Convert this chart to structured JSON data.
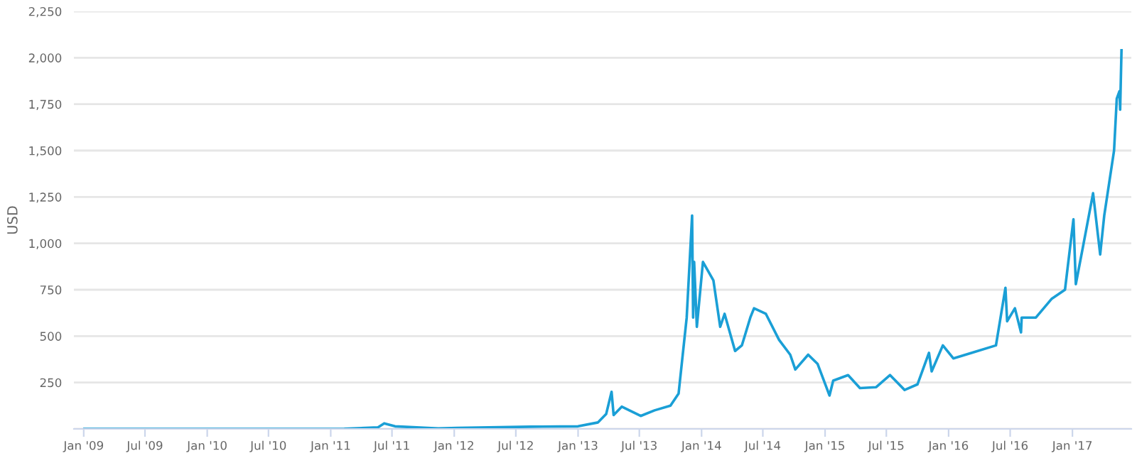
{
  "chart_data": {
    "type": "line",
    "ylabel": "USD",
    "xlim": [
      "2008-12-03",
      "2017-06-24"
    ],
    "ylim": [
      0,
      2250
    ],
    "yticks": [
      {
        "value": 0,
        "label": null
      },
      {
        "value": 250,
        "label": "250"
      },
      {
        "value": 500,
        "label": "500"
      },
      {
        "value": 750,
        "label": "750"
      },
      {
        "value": 1000,
        "label": "1,000"
      },
      {
        "value": 1250,
        "label": "1,250"
      },
      {
        "value": 1500,
        "label": "1,500"
      },
      {
        "value": 1750,
        "label": "1,750"
      },
      {
        "value": 2000,
        "label": "2,000"
      },
      {
        "value": 2250,
        "label": "2,250"
      }
    ],
    "xticks": [
      {
        "value": "2009-01-01",
        "label": "Jan '09"
      },
      {
        "value": "2009-07-01",
        "label": "Jul '09"
      },
      {
        "value": "2010-01-01",
        "label": "Jan '10"
      },
      {
        "value": "2010-07-01",
        "label": "Jul '10"
      },
      {
        "value": "2011-01-01",
        "label": "Jan '11"
      },
      {
        "value": "2011-07-01",
        "label": "Jul '11"
      },
      {
        "value": "2012-01-01",
        "label": "Jan '12"
      },
      {
        "value": "2012-07-01",
        "label": "Jul '12"
      },
      {
        "value": "2013-01-01",
        "label": "Jan '13"
      },
      {
        "value": "2013-07-01",
        "label": "Jul '13"
      },
      {
        "value": "2014-01-01",
        "label": "Jan '14"
      },
      {
        "value": "2014-07-01",
        "label": "Jul '14"
      },
      {
        "value": "2015-01-01",
        "label": "Jan '15"
      },
      {
        "value": "2015-07-01",
        "label": "Jul '15"
      },
      {
        "value": "2016-01-01",
        "label": "Jan '16"
      },
      {
        "value": "2016-07-01",
        "label": "Jul '16"
      },
      {
        "value": "2017-01-01",
        "label": "Jan '17"
      }
    ],
    "grid": "y",
    "legend": false,
    "line_style": "solid",
    "marker": "none",
    "x": [
      "2009-01-03",
      "2010-07-17",
      "2011-02-10",
      "2011-05-20",
      "2011-06-08",
      "2011-07-10",
      "2011-11-15",
      "2012-01-10",
      "2012-08-15",
      "2013-01-01",
      "2013-03-01",
      "2013-03-25",
      "2013-04-10",
      "2013-04-16",
      "2013-05-10",
      "2013-07-05",
      "2013-08-15",
      "2013-10-01",
      "2013-10-25",
      "2013-11-18",
      "2013-12-04",
      "2013-12-07",
      "2013-12-10",
      "2013-12-18",
      "2014-01-05",
      "2014-02-05",
      "2014-02-25",
      "2014-03-10",
      "2014-04-10",
      "2014-04-30",
      "2014-05-25",
      "2014-06-05",
      "2014-07-10",
      "2014-08-18",
      "2014-09-20",
      "2014-10-05",
      "2014-11-12",
      "2014-12-10",
      "2015-01-14",
      "2015-01-25",
      "2015-03-10",
      "2015-04-14",
      "2015-06-01",
      "2015-07-12",
      "2015-08-24",
      "2015-10-01",
      "2015-11-04",
      "2015-11-12",
      "2015-12-15",
      "2016-01-15",
      "2016-03-10",
      "2016-05-20",
      "2016-06-17",
      "2016-06-22",
      "2016-07-15",
      "2016-08-02",
      "2016-08-04",
      "2016-09-15",
      "2016-10-31",
      "2016-12-10",
      "2017-01-04",
      "2017-01-11",
      "2017-02-01",
      "2017-03-03",
      "2017-03-24",
      "2017-04-05",
      "2017-05-04",
      "2017-05-12",
      "2017-05-20",
      "2017-05-22",
      "2017-05-26"
    ],
    "series": [
      {
        "color": "#1a9fd6",
        "values": [
          0,
          0,
          1,
          8,
          30,
          14,
          3,
          6,
          12,
          14,
          35,
          80,
          200,
          75,
          120,
          70,
          100,
          125,
          190,
          600,
          1150,
          600,
          900,
          550,
          900,
          800,
          550,
          620,
          420,
          450,
          600,
          650,
          620,
          480,
          400,
          320,
          400,
          350,
          180,
          260,
          290,
          220,
          225,
          290,
          210,
          240,
          410,
          310,
          450,
          380,
          410,
          450,
          760,
          580,
          650,
          520,
          600,
          600,
          700,
          750,
          1130,
          780,
          980,
          1270,
          940,
          1150,
          1500,
          1780,
          1820,
          1720,
          2040
        ]
      }
    ]
  }
}
